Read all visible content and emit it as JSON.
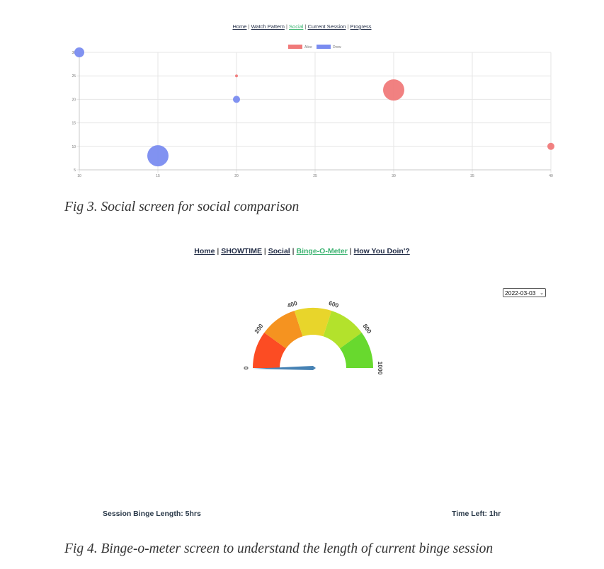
{
  "figure3": {
    "nav": [
      {
        "label": "Home",
        "active": false
      },
      {
        "label": "Watch Pattern",
        "active": false
      },
      {
        "label": "Social",
        "active": true
      },
      {
        "label": "Current Session",
        "active": false
      },
      {
        "label": "Progress",
        "active": false
      }
    ],
    "caption": "Fig 3. Social screen for social comparison"
  },
  "figure4": {
    "nav": [
      {
        "label": "Home",
        "active": false
      },
      {
        "label": "SHOWTIME",
        "active": false
      },
      {
        "label": "Social",
        "active": false
      },
      {
        "label": "Binge-O-Meter",
        "active": true
      },
      {
        "label": "How You Doin'?",
        "active": false
      }
    ],
    "date_select": "2022-03-03",
    "session_length": "Session Binge Length: 5hrs",
    "time_left": "Time Left: 1hr",
    "caption": "Fig 4. Binge-o-meter screen to understand the length of current binge session"
  },
  "chart_data": [
    {
      "type": "scatter",
      "subtype": "bubble",
      "title": "",
      "xlabel": "",
      "ylabel": "",
      "xlim": [
        10,
        40
      ],
      "ylim": [
        5,
        30
      ],
      "x_ticks": [
        "10",
        "15",
        "20",
        "25",
        "30",
        "35",
        "40"
      ],
      "y_ticks": [
        "5",
        "10",
        "15",
        "20",
        "25",
        "30"
      ],
      "grid": true,
      "legend": "top",
      "series": [
        {
          "name": "Alice",
          "color": "#f07a7a",
          "points": [
            {
              "x": 20,
              "y": 25,
              "r": 2
            },
            {
              "x": 30,
              "y": 22,
              "r": 15
            },
            {
              "x": 40,
              "y": 10,
              "r": 5
            }
          ]
        },
        {
          "name": "Drew",
          "color": "#7a8cf0",
          "points": [
            {
              "x": 10,
              "y": 30,
              "r": 7
            },
            {
              "x": 20,
              "y": 20,
              "r": 5
            },
            {
              "x": 15,
              "y": 8,
              "r": 15
            }
          ]
        }
      ]
    },
    {
      "type": "gauge",
      "title": "",
      "min": 0,
      "max": 1000,
      "value": 50,
      "tick_labels": [
        "0",
        "200",
        "400",
        "600",
        "800",
        "1000"
      ],
      "segment_colors": [
        "#fc4c23",
        "#f59320",
        "#e8d52b",
        "#b3e22c",
        "#68d92e"
      ],
      "needle_color": "#4682b4"
    }
  ]
}
